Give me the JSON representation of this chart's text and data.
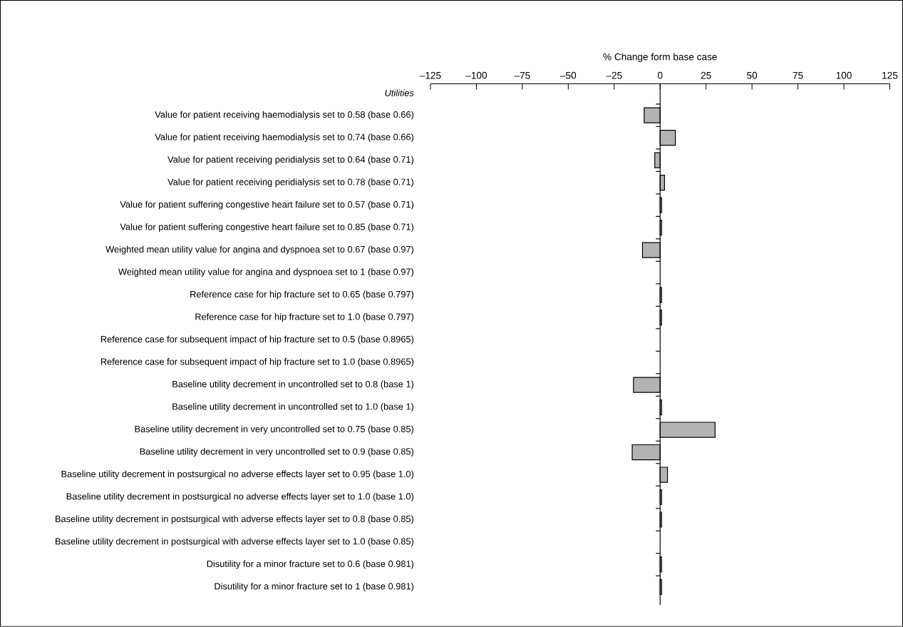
{
  "chart_data": {
    "type": "bar",
    "orientation": "horizontal",
    "xlabel": "% Change form base case",
    "categories": [
      "Utilities",
      "Value for patient receiving haemodialysis set to 0.58 (base 0.66)",
      "Value for patient receiving haemodialysis set to 0.74 (base 0.66)",
      "Value for patient receiving peridialysis set to 0.64 (base 0.71)",
      "Value for patient receiving peridialysis set to 0.78 (base 0.71)",
      "Value for patient suffering congestive heart failure set to 0.57 (base 0.71)",
      "Value for patient suffering congestive heart failure set to 0.85 (base 0.71)",
      "Weighted mean utility value for angina and dyspnoea set to 0.67 (base 0.97)",
      "Weighted mean utility value for angina and dyspnoea set to 1 (base 0.97)",
      "Reference case for hip fracture set to 0.65 (base 0.797)",
      "Reference case for hip fracture set to 1.0 (base 0.797)",
      "Reference case for subsequent impact of hip fracture set to 0.5 (base 0.8965)",
      "Reference case for subsequent impact of hip fracture set to 1.0 (base 0.8965)",
      "Baseline utility decrement in uncontrolled set to 0.8 (base 1)",
      "Baseline utility decrement in uncontrolled set to 1.0 (base 1)",
      "Baseline utility decrement in very uncontrolled set to 0.75 (base 0.85)",
      "Baseline utility decrement in very uncontrolled set to 0.9 (base 0.85)",
      "Baseline utility decrement in postsurgical no adverse effects layer set to 0.95 (base 1.0)",
      "Baseline utility decrement in postsurgical no adverse effects layer set to 1.0 (base 1.0)",
      "Baseline utility decrement in postsurgical with adverse effects layer set to 0.8 (base 0.85)",
      "Baseline utility decrement in postsurgical with adverse effects layer set to 1.0 (base 0.85)",
      "Disutility for a minor fracture set to 0.6 (base 0.981)",
      "Disutility for a minor fracture set to 1 (base 0.981)"
    ],
    "values": [
      null,
      -8.7,
      8.3,
      -2.9,
      2.4,
      0.8,
      0.8,
      -9.6,
      null,
      0.8,
      0.8,
      null,
      null,
      -14.5,
      0.8,
      29.9,
      -15.2,
      4,
      0.8,
      0.8,
      null,
      0.8,
      0.8
    ],
    "color": "#b3b3b3",
    "xlim": [
      -125,
      125
    ],
    "xticks": [
      {
        "value": -125,
        "label": "–125"
      },
      {
        "value": -100,
        "label": "–100"
      },
      {
        "value": -75,
        "label": "–75"
      },
      {
        "value": -50,
        "label": "–50"
      },
      {
        "value": -25,
        "label": "–25"
      },
      0,
      25,
      50,
      75,
      100,
      125
    ]
  }
}
